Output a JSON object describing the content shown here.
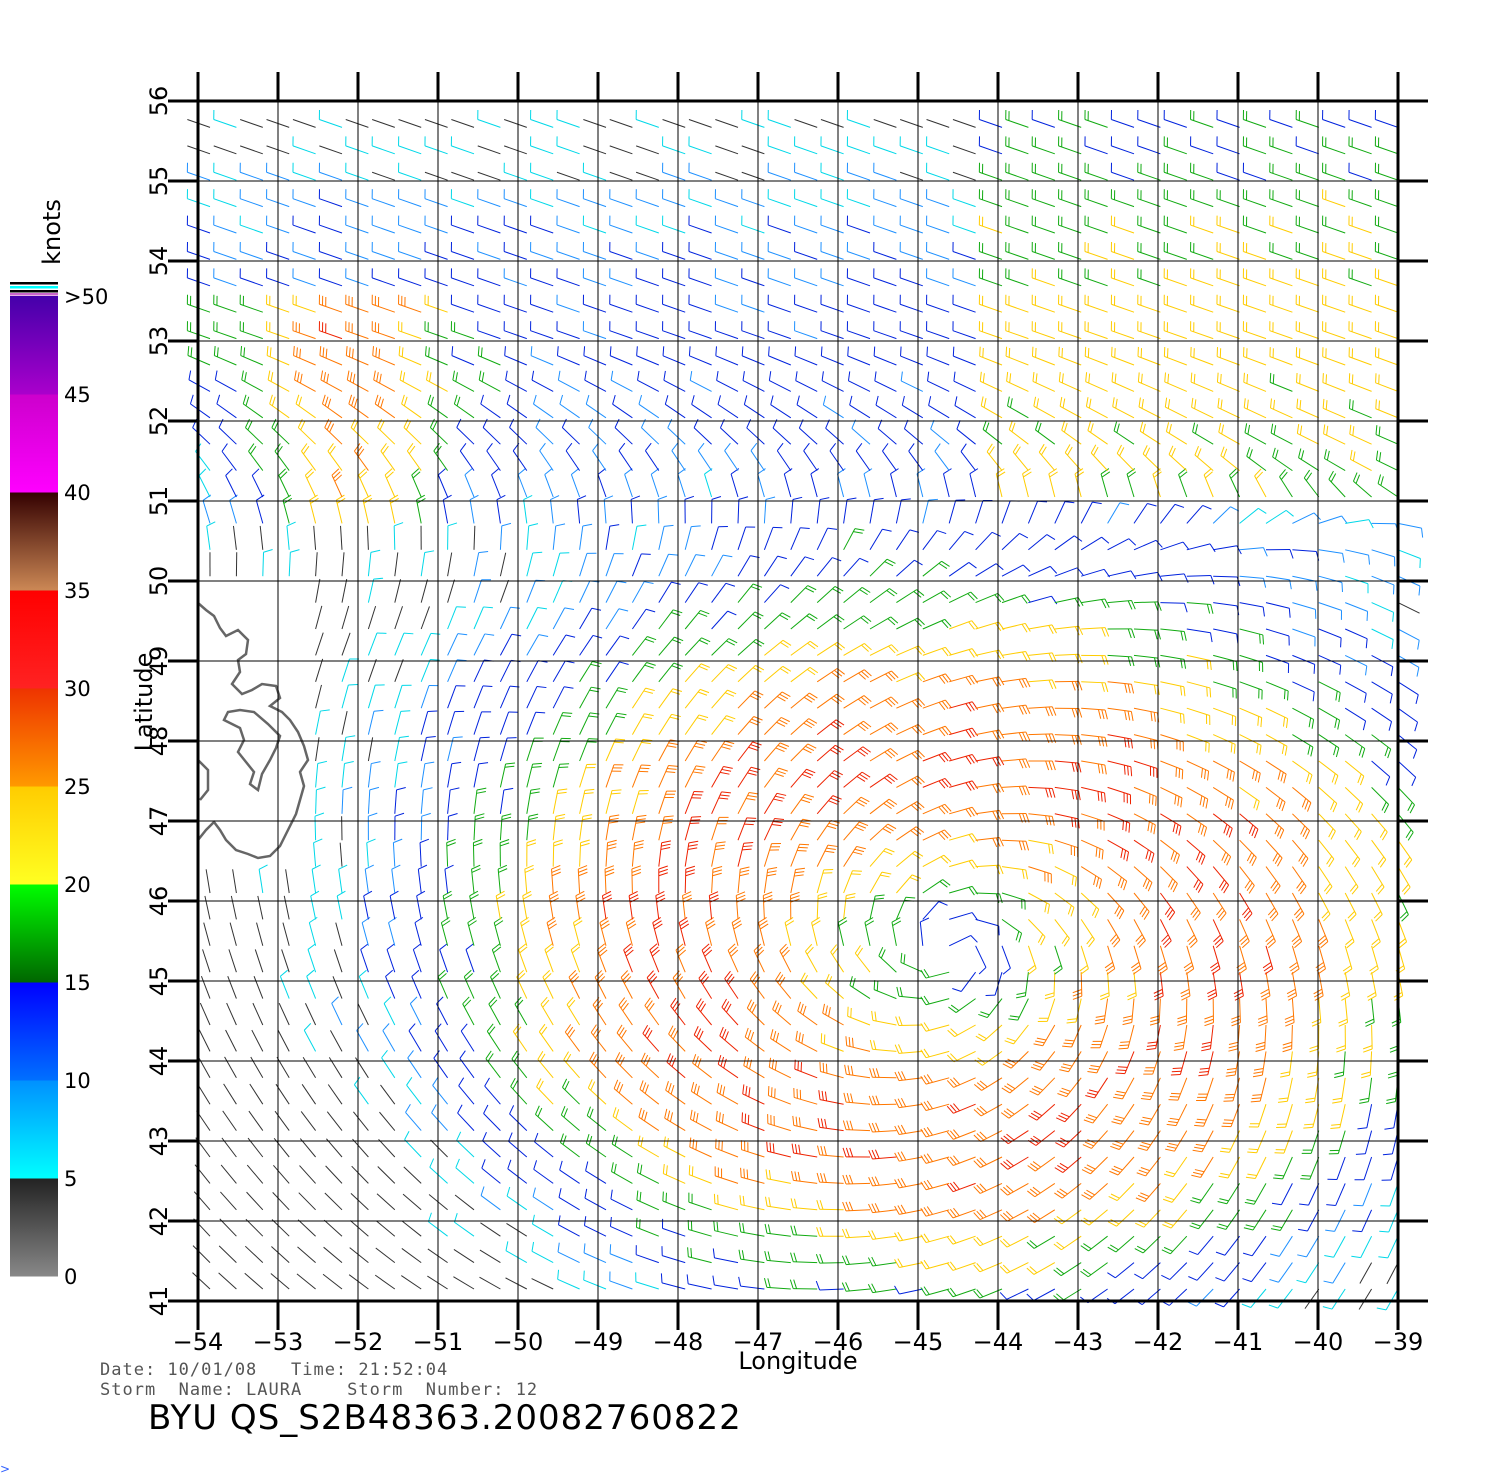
{
  "chart_data": {
    "type": "wind-barb-map",
    "xlabel": "Longitude",
    "ylabel": "Latitude",
    "x_ticks": [
      -54,
      -53,
      -52,
      -51,
      -50,
      -49,
      -48,
      -47,
      -46,
      -45,
      -44,
      -43,
      -42,
      -41,
      -40,
      -39
    ],
    "y_ticks": [
      41,
      42,
      43,
      44,
      45,
      46,
      47,
      48,
      49,
      50,
      51,
      52,
      53,
      54,
      55,
      56
    ],
    "xlim": [
      -54,
      -38.6
    ],
    "ylim": [
      41,
      56
    ],
    "grid": true,
    "storm_center": {
      "lon": -44.6,
      "lat": 45.4
    },
    "colorbar": {
      "title": "knots",
      "tick_labels": [
        "0",
        "5",
        "10",
        "15",
        "20",
        "25",
        "30",
        "35",
        "40",
        "45",
        ">50"
      ],
      "bands": [
        {
          "range": [
            0,
            5
          ],
          "top": "#222222",
          "bottom": "#888888"
        },
        {
          "range": [
            5,
            10
          ],
          "top": "#0090ff",
          "bottom": "#00ffff"
        },
        {
          "range": [
            10,
            15
          ],
          "top": "#0000ff",
          "bottom": "#0070ff"
        },
        {
          "range": [
            15,
            20
          ],
          "top": "#00ff00",
          "bottom": "#006600"
        },
        {
          "range": [
            20,
            25
          ],
          "top": "#ffcc00",
          "bottom": "#ffff22"
        },
        {
          "range": [
            25,
            30
          ],
          "top": "#ee3300",
          "bottom": "#ff9900"
        },
        {
          "range": [
            30,
            35
          ],
          "top": "#ff0000",
          "bottom": "#ff2222"
        },
        {
          "range": [
            35,
            40
          ],
          "top": "#330000",
          "bottom": "#cc8855"
        },
        {
          "range": [
            40,
            45
          ],
          "top": "#cc00cc",
          "bottom": "#ff00ff"
        },
        {
          "range": [
            45,
            50
          ],
          "top": "#4400aa",
          "bottom": "#aa00cc"
        }
      ]
    }
  },
  "footer": {
    "line1": "Date: 10/01/08   Time: 21:52:04",
    "line2": "Storm  Name: LAURA    Storm  Number: 12",
    "file_id": "BYU  QS_S2B48363.20082760822"
  },
  "corner_mark": ">"
}
